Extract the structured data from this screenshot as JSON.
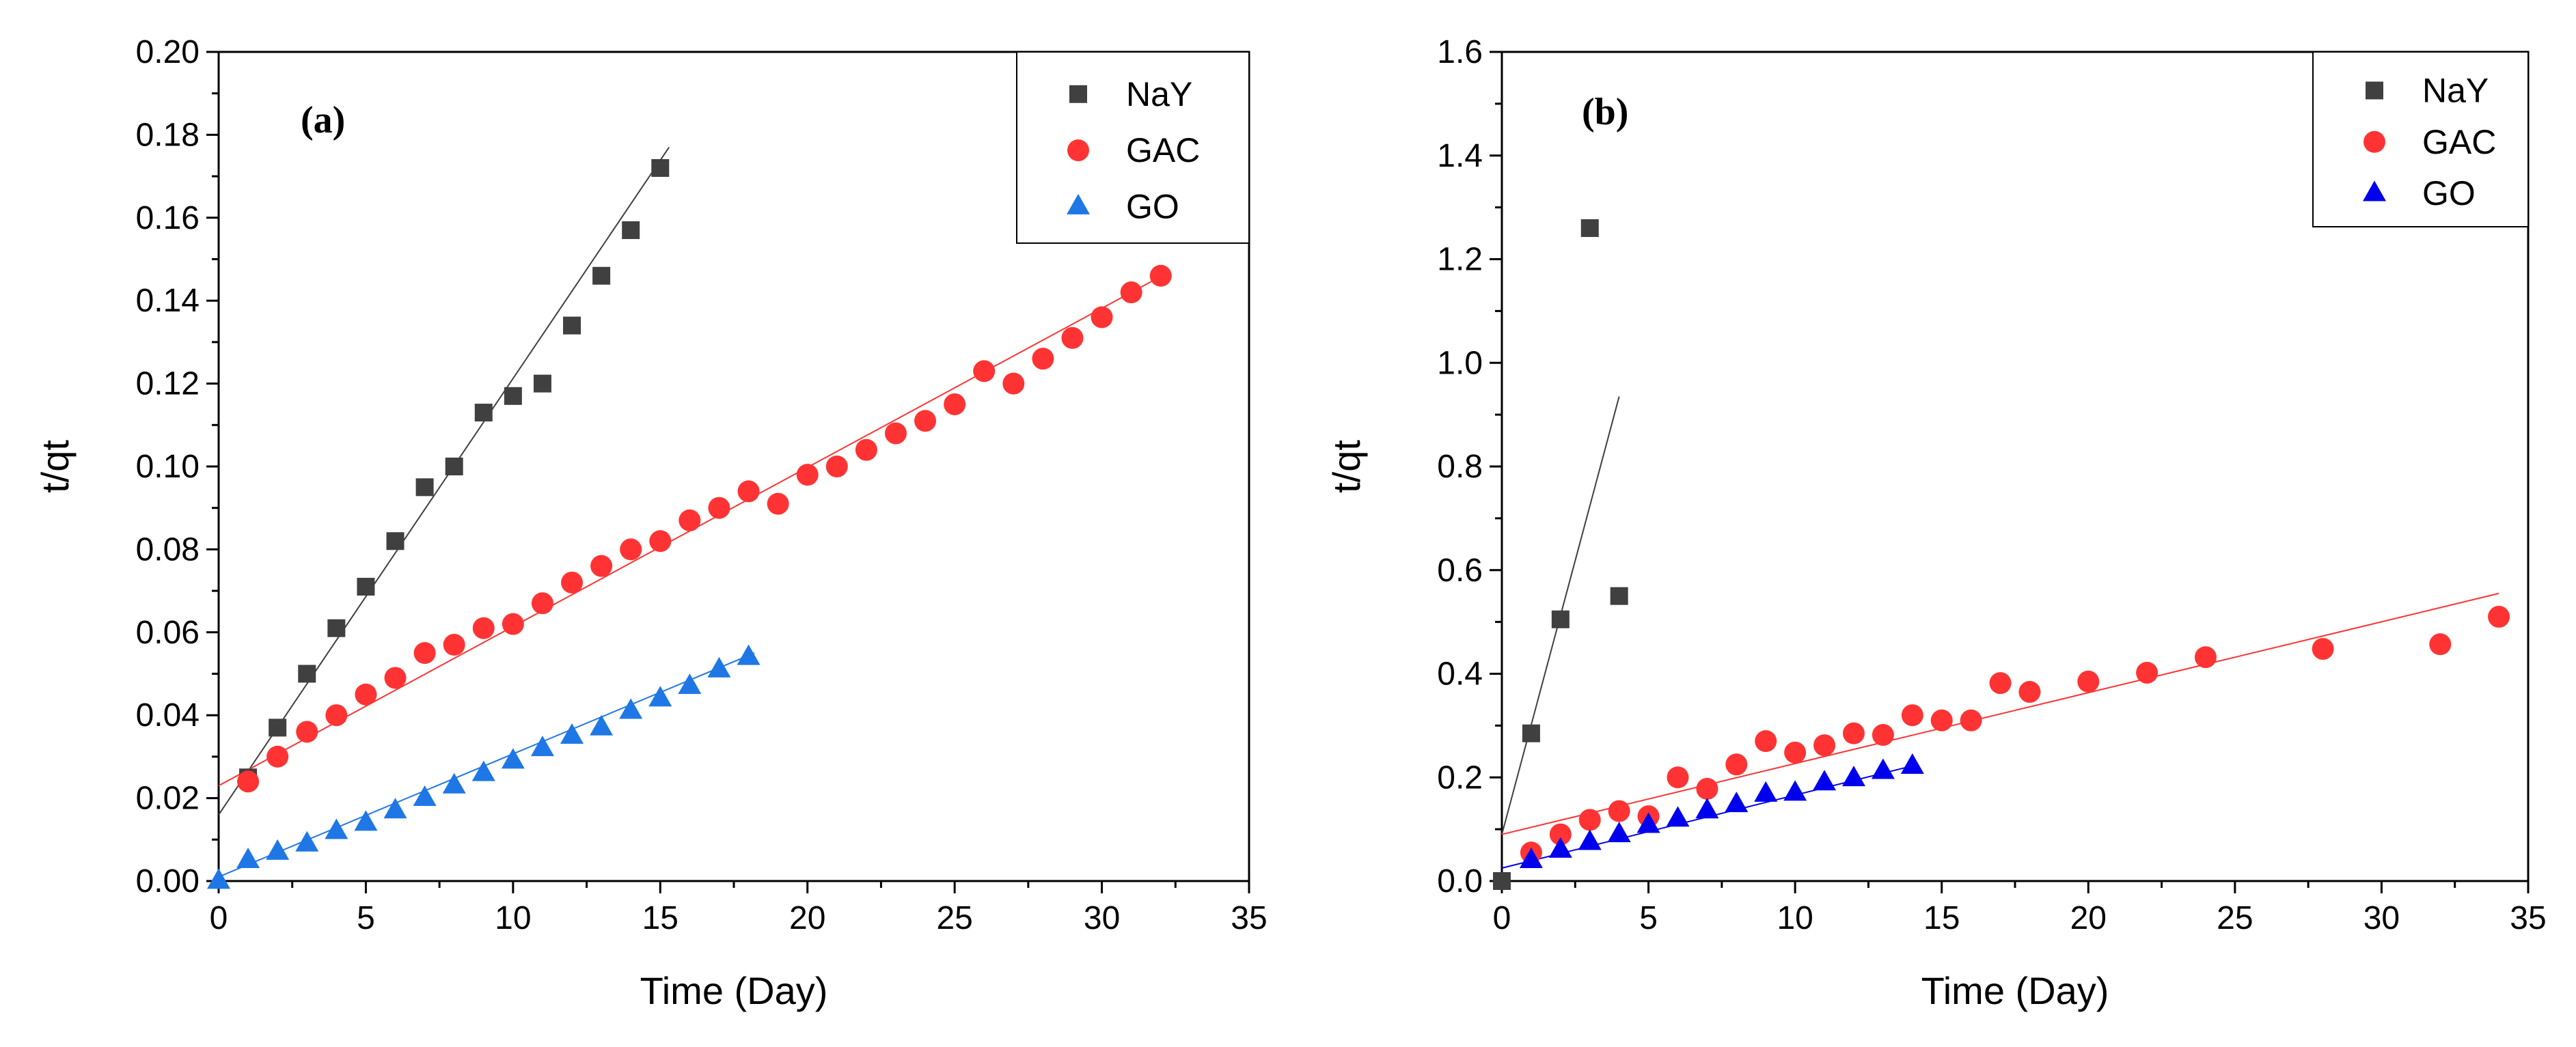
{
  "chart_data": [
    {
      "type": "scatter",
      "panel_label": "(a)",
      "xlabel": "Time (Day)",
      "ylabel": "t/qt",
      "xlim": [
        0,
        35
      ],
      "ylim": [
        0,
        0.2
      ],
      "xticks": [
        0,
        5,
        10,
        15,
        20,
        25,
        30,
        35
      ],
      "yticks": [
        0.0,
        0.02,
        0.04,
        0.06,
        0.08,
        0.1,
        0.12,
        0.14,
        0.16,
        0.18,
        0.2
      ],
      "ytick_labels": [
        "0.00",
        "0.02",
        "0.04",
        "0.06",
        "0.08",
        "0.10",
        "0.12",
        "0.14",
        "0.16",
        "0.18",
        "0.20"
      ],
      "legend_position": "top-right",
      "series": [
        {
          "name": "NaY",
          "marker": "square",
          "color": "#404040",
          "x": [
            1,
            2,
            3,
            4,
            5,
            6,
            7,
            8,
            9,
            10,
            11,
            12,
            13,
            14,
            15
          ],
          "y": [
            0.025,
            0.037,
            0.05,
            0.061,
            0.071,
            0.082,
            0.095,
            0.1,
            0.113,
            0.117,
            0.12,
            0.134,
            0.146,
            0.157,
            0.172
          ],
          "fit": {
            "x0": 0,
            "y0": 0.016,
            "x1": 15.3,
            "y1": 0.177,
            "color": "#404040"
          }
        },
        {
          "name": "GAC",
          "marker": "circle",
          "color": "#ff3333",
          "x": [
            1,
            2,
            3,
            4,
            5,
            6,
            7,
            8,
            9,
            10,
            11,
            12,
            13,
            14,
            15,
            16,
            17,
            18,
            19,
            20,
            21,
            22,
            23,
            24,
            25,
            26,
            27,
            28,
            29,
            30,
            31,
            32
          ],
          "y": [
            0.024,
            0.03,
            0.036,
            0.04,
            0.045,
            0.049,
            0.055,
            0.057,
            0.061,
            0.062,
            0.067,
            0.072,
            0.076,
            0.08,
            0.082,
            0.087,
            0.09,
            0.094,
            0.091,
            0.098,
            0.1,
            0.104,
            0.108,
            0.111,
            0.115,
            0.123,
            0.12,
            0.126,
            0.131,
            0.136,
            0.142,
            0.146
          ],
          "fit": {
            "x0": 0,
            "y0": 0.023,
            "x1": 32.3,
            "y1": 0.147,
            "color": "#ff3333"
          }
        },
        {
          "name": "GO",
          "marker": "triangle",
          "color": "#1f77e6",
          "x": [
            0,
            1,
            2,
            3,
            4,
            5,
            6,
            7,
            8,
            9,
            10,
            11,
            12,
            13,
            14,
            15,
            16,
            17,
            18
          ],
          "y": [
            0.0,
            0.005,
            0.007,
            0.009,
            0.012,
            0.014,
            0.017,
            0.02,
            0.023,
            0.026,
            0.029,
            0.032,
            0.035,
            0.037,
            0.041,
            0.044,
            0.047,
            0.051,
            0.054
          ],
          "fit": {
            "x0": 0,
            "y0": 0.001,
            "x1": 18.2,
            "y1": 0.055,
            "color": "#1f77e6"
          }
        }
      ]
    },
    {
      "type": "scatter",
      "panel_label": "(b)",
      "xlabel": "Time (Day)",
      "ylabel": "t/qt",
      "xlim": [
        0,
        35
      ],
      "ylim": [
        0,
        1.6
      ],
      "xticks": [
        0,
        5,
        10,
        15,
        20,
        25,
        30,
        35
      ],
      "yticks": [
        0.0,
        0.2,
        0.4,
        0.6,
        0.8,
        1.0,
        1.2,
        1.4,
        1.6
      ],
      "ytick_labels": [
        "0.0",
        "0.2",
        "0.4",
        "0.6",
        "0.8",
        "1.0",
        "1.2",
        "1.4",
        "1.6"
      ],
      "legend_position": "top-right",
      "series": [
        {
          "name": "NaY",
          "marker": "square",
          "color": "#404040",
          "x": [
            0,
            1,
            2,
            3,
            4
          ],
          "y": [
            0.0,
            0.285,
            0.505,
            1.26,
            0.55
          ],
          "fit": {
            "x0": 0,
            "y0": 0.09,
            "x1": 4.0,
            "y1": 0.935,
            "color": "#404040"
          }
        },
        {
          "name": "GAC",
          "marker": "circle",
          "color": "#ff3333",
          "x": [
            1,
            2,
            3,
            4,
            5,
            6,
            7,
            8,
            9,
            10,
            11,
            12,
            13,
            14,
            15,
            16,
            17,
            18,
            20,
            22,
            24,
            28,
            32,
            34
          ],
          "y": [
            0.055,
            0.09,
            0.118,
            0.135,
            0.125,
            0.2,
            0.178,
            0.225,
            0.27,
            0.248,
            0.262,
            0.285,
            0.282,
            0.32,
            0.31,
            0.31,
            0.382,
            0.365,
            0.385,
            0.402,
            0.432,
            0.448,
            0.457,
            0.51
          ],
          "fit": {
            "x0": 0,
            "y0": 0.09,
            "x1": 34,
            "y1": 0.555,
            "color": "#ff3333"
          }
        },
        {
          "name": "GO",
          "marker": "triangle",
          "color": "#0000ee",
          "x": [
            1,
            2,
            3,
            4,
            5,
            6,
            7,
            8,
            9,
            10,
            11,
            12,
            13,
            14
          ],
          "y": [
            0.04,
            0.06,
            0.075,
            0.09,
            0.108,
            0.12,
            0.136,
            0.148,
            0.168,
            0.17,
            0.19,
            0.198,
            0.212,
            0.222
          ],
          "fit": {
            "x0": 0,
            "y0": 0.025,
            "x1": 14.2,
            "y1": 0.225,
            "color": "#0000ee"
          }
        }
      ]
    }
  ]
}
